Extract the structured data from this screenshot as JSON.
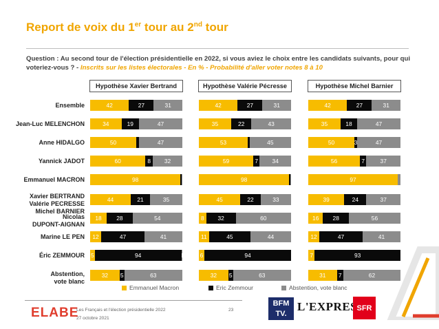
{
  "header": {
    "title_main": "Report de voix du 1",
    "title_sup1": "er",
    "title_mid": " tour au 2",
    "title_sup2": "nd",
    "title_end": " tour"
  },
  "question": {
    "text": "Question : Au second tour de l'élection présidentielle en 2022, si vous aviez le choix entre les candidats suivants, pour qui voteriez-vous ? - ",
    "subtitle": "Inscrits sur les listes électorales - En % - Probabilité d'aller voter notes 8 à 10"
  },
  "chart_data": {
    "type": "bar",
    "stacked": true,
    "orientation": "horizontal",
    "categories": [
      "Ensemble",
      "Jean-Luc MELENCHON",
      "Anne HIDALGO",
      "Yannick JADOT",
      "Emmanuel MACRON",
      "Xavier BERTRAND\nValérie PECRESSE\nMichel BARNIER",
      "Nicolas\nDUPONT-AIGNAN",
      "Marine LE PEN",
      "Éric ZEMMOUR",
      "Abstention,\nvote blanc"
    ],
    "series_names": [
      "Emmanuel Macron",
      "Eric Zemmour",
      "Abstention, vote blanc"
    ],
    "colors": {
      "macron": "#f7bc00",
      "zemmour": "#0a0a0a",
      "abstention": "#8c8c8c"
    },
    "panels": [
      {
        "title": "Hypothèse Xavier Bertrand",
        "rows": [
          [
            42,
            27,
            31
          ],
          [
            34,
            19,
            47
          ],
          [
            50,
            3,
            47
          ],
          [
            60,
            8,
            32
          ],
          [
            98,
            1,
            1
          ],
          [
            44,
            21,
            35
          ],
          [
            18,
            28,
            54
          ],
          [
            12,
            47,
            41
          ],
          [
            5,
            94,
            1
          ],
          [
            32,
            5,
            63
          ]
        ],
        "labels": [
          [
            "42",
            "27",
            "31"
          ],
          [
            "34",
            "19",
            "47"
          ],
          [
            "50",
            "",
            "47"
          ],
          [
            "60",
            "8",
            "32"
          ],
          [
            "98",
            "",
            ""
          ],
          [
            "44",
            "21",
            "35"
          ],
          [
            "18",
            "28",
            "54"
          ],
          [
            "12",
            "47",
            "41"
          ],
          [
            "5",
            "94",
            "1"
          ],
          [
            "32",
            "5",
            "63"
          ]
        ]
      },
      {
        "title": "Hypothèse Valérie Pécresse",
        "rows": [
          [
            42,
            27,
            31
          ],
          [
            35,
            22,
            43
          ],
          [
            53,
            2,
            45
          ],
          [
            59,
            7,
            34
          ],
          [
            98,
            1,
            1
          ],
          [
            45,
            22,
            33
          ],
          [
            8,
            32,
            60
          ],
          [
            11,
            45,
            44
          ],
          [
            6,
            94,
            0
          ],
          [
            32,
            5,
            63
          ]
        ],
        "labels": [
          [
            "42",
            "27",
            "31"
          ],
          [
            "35",
            "22",
            "43"
          ],
          [
            "53",
            "",
            "45"
          ],
          [
            "59",
            "7",
            "34"
          ],
          [
            "98",
            "",
            ""
          ],
          [
            "45",
            "22",
            "33"
          ],
          [
            "8",
            "32",
            "60"
          ],
          [
            "11",
            "45",
            "44"
          ],
          [
            "6",
            "94",
            ""
          ],
          [
            "32",
            "5",
            "63"
          ]
        ]
      },
      {
        "title": "Hypothèse Michel Barnier",
        "rows": [
          [
            42,
            27,
            31
          ],
          [
            35,
            18,
            47
          ],
          [
            50,
            3,
            47
          ],
          [
            56,
            7,
            37
          ],
          [
            97,
            0,
            3
          ],
          [
            39,
            24,
            37
          ],
          [
            16,
            28,
            56
          ],
          [
            12,
            47,
            41
          ],
          [
            7,
            93,
            0
          ],
          [
            31,
            7,
            62
          ]
        ],
        "labels": [
          [
            "42",
            "27",
            "31"
          ],
          [
            "35",
            "18",
            "47"
          ],
          [
            "50",
            "3",
            "47"
          ],
          [
            "56",
            "7",
            "37"
          ],
          [
            "97",
            "",
            ""
          ],
          [
            "39",
            "24",
            "37"
          ],
          [
            "16",
            "28",
            "56"
          ],
          [
            "12",
            "47",
            "41"
          ],
          [
            "7",
            "93",
            ""
          ],
          [
            "31",
            "7",
            "62"
          ]
        ]
      }
    ],
    "unit": "%"
  },
  "legend": {
    "macron": "Emmanuel Macron",
    "zemmour": "Eric Zemmour",
    "abstention": "Abstention, vote blanc"
  },
  "footer": {
    "brand": "ELABE",
    "line1": "Les Français et l'élection présidentielle 2022",
    "line2": "27 octobre 2021",
    "page": "23",
    "partner1_top": "BFM",
    "partner1_bottom": "TV.",
    "partner2": "L'EXPRESS",
    "partner3": "SFR"
  }
}
